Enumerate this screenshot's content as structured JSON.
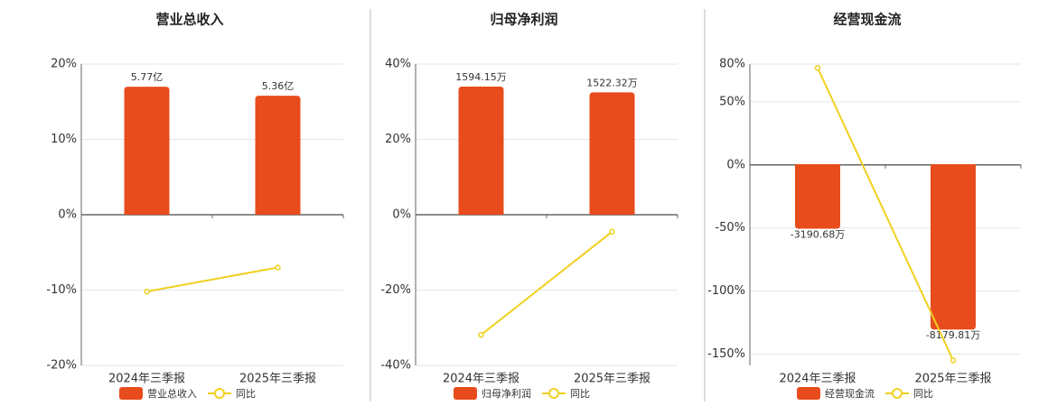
{
  "chart_data": [
    {
      "type": "combo",
      "title": "营业总收入",
      "categories": [
        "2024年三季报",
        "2025年三季报"
      ],
      "ylim": [
        -20,
        20
      ],
      "yticks": [
        {
          "value": -20,
          "label": "-20%"
        },
        {
          "value": -10,
          "label": "-10%"
        },
        {
          "value": 0,
          "label": "0%"
        },
        {
          "value": 10,
          "label": "10%"
        },
        {
          "value": 20,
          "label": "20%"
        }
      ],
      "y2lim": [
        -6.79,
        6.79
      ],
      "grid": true,
      "series": [
        {
          "name": "营业总收入",
          "type": "bar",
          "axis": "y2",
          "color": "#e84c1c",
          "values": [
            5.77,
            5.36
          ],
          "value_labels": [
            "5.77亿",
            "5.36亿"
          ]
        },
        {
          "name": "同比",
          "type": "line",
          "color": "#f0d020",
          "values": [
            -10.2,
            -7.0
          ]
        }
      ]
    },
    {
      "type": "combo",
      "title": "归母净利润",
      "categories": [
        "2024年三季报",
        "2025年三季报"
      ],
      "ylim": [
        -40,
        40
      ],
      "yticks": [
        {
          "value": -40,
          "label": "-40%"
        },
        {
          "value": -20,
          "label": "-20%"
        },
        {
          "value": 0,
          "label": "0%"
        },
        {
          "value": 20,
          "label": "20%"
        },
        {
          "value": 40,
          "label": "40%"
        }
      ],
      "y2lim": [
        -1875,
        1875
      ],
      "grid": true,
      "series": [
        {
          "name": "归母净利润",
          "type": "bar",
          "axis": "y2",
          "color": "#e84c1c",
          "values": [
            1594.15,
            1522.32
          ],
          "value_labels": [
            "1594.15万",
            "1522.32万"
          ]
        },
        {
          "name": "同比",
          "type": "line",
          "color": "#f0d020",
          "values": [
            -31.9,
            -4.5
          ]
        }
      ]
    },
    {
      "type": "combo",
      "title": "经营现金流",
      "categories": [
        "2024年三季报",
        "2025年三季报"
      ],
      "ylim": [
        -159,
        80
      ],
      "yticks": [
        {
          "value": -150,
          "label": "-150%"
        },
        {
          "value": -100,
          "label": "-100%"
        },
        {
          "value": -50,
          "label": "-50%"
        },
        {
          "value": 0,
          "label": "0%"
        },
        {
          "value": 50,
          "label": "50%"
        },
        {
          "value": 80,
          "label": "80%"
        }
      ],
      "y2lim": [
        -9955,
        4955
      ],
      "grid": true,
      "series": [
        {
          "name": "经营现金流",
          "type": "bar",
          "axis": "y2",
          "color": "#e84c1c",
          "values": [
            -3190.68,
            -8179.81
          ],
          "value_labels": [
            "-3190.68万",
            "-8179.81万"
          ]
        },
        {
          "name": "同比",
          "type": "line",
          "color": "#f0d020",
          "values": [
            77,
            -155
          ]
        }
      ]
    }
  ]
}
